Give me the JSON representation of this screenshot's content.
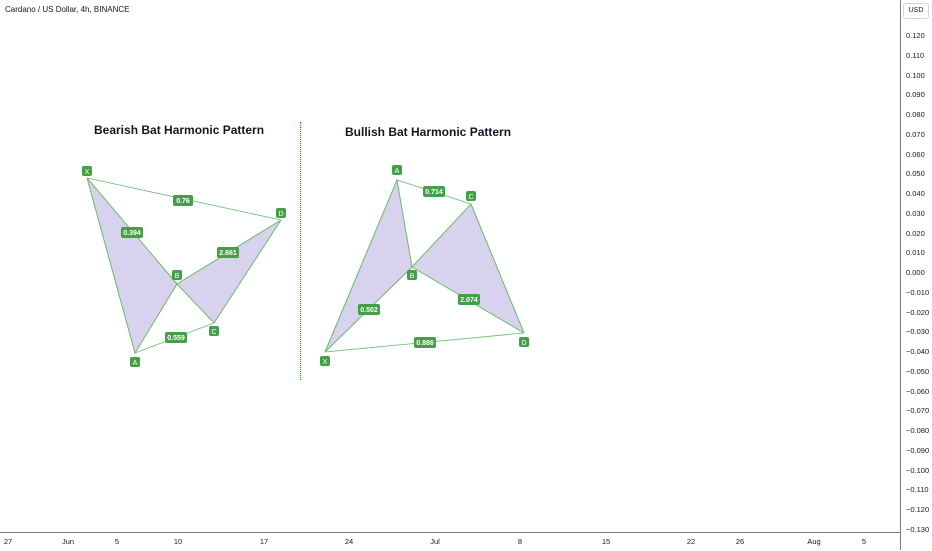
{
  "header": {
    "symbol_title": "Cardano / US Dollar, 4h, BINANCE"
  },
  "currency": "USD",
  "price_axis_labels": [
    "0.120",
    "0.110",
    "0.100",
    "0.090",
    "0.080",
    "0.070",
    "0.060",
    "0.050",
    "0.040",
    "0.030",
    "0.020",
    "0.010",
    "0.000",
    "−0.010",
    "−0.020",
    "−0.030",
    "−0.040",
    "−0.050",
    "−0.060",
    "−0.070",
    "−0.080",
    "−0.090",
    "−0.100",
    "−0.110",
    "−0.120",
    "−0.130"
  ],
  "time_axis_labels": [
    "27",
    "Jun",
    "5",
    "10",
    "17",
    "24",
    "Jul",
    "8",
    "15",
    "22",
    "26",
    "Aug",
    "5"
  ],
  "bearish": {
    "title": "Bearish Bat Harmonic Pattern",
    "points": {
      "X": "X",
      "A": "A",
      "B": "B",
      "C": "C",
      "D": "D"
    },
    "ratios": {
      "xb": "0.394",
      "ac": "0.559",
      "bd": "2.661",
      "xd": "0.76"
    }
  },
  "bullish": {
    "title": "Bullish Bat Harmonic Pattern",
    "points": {
      "X": "X",
      "A": "A",
      "B": "B",
      "C": "C",
      "D": "D"
    },
    "ratios": {
      "xb": "0.502",
      "ac": "0.714",
      "bd": "2.074",
      "xd": "0.886"
    }
  },
  "colors": {
    "pattern_fill": "#d9d2ee",
    "pattern_line": "#66bb6a",
    "label_bg": "#43a047",
    "label_text": "#ffffff",
    "divider": "#e53935"
  }
}
